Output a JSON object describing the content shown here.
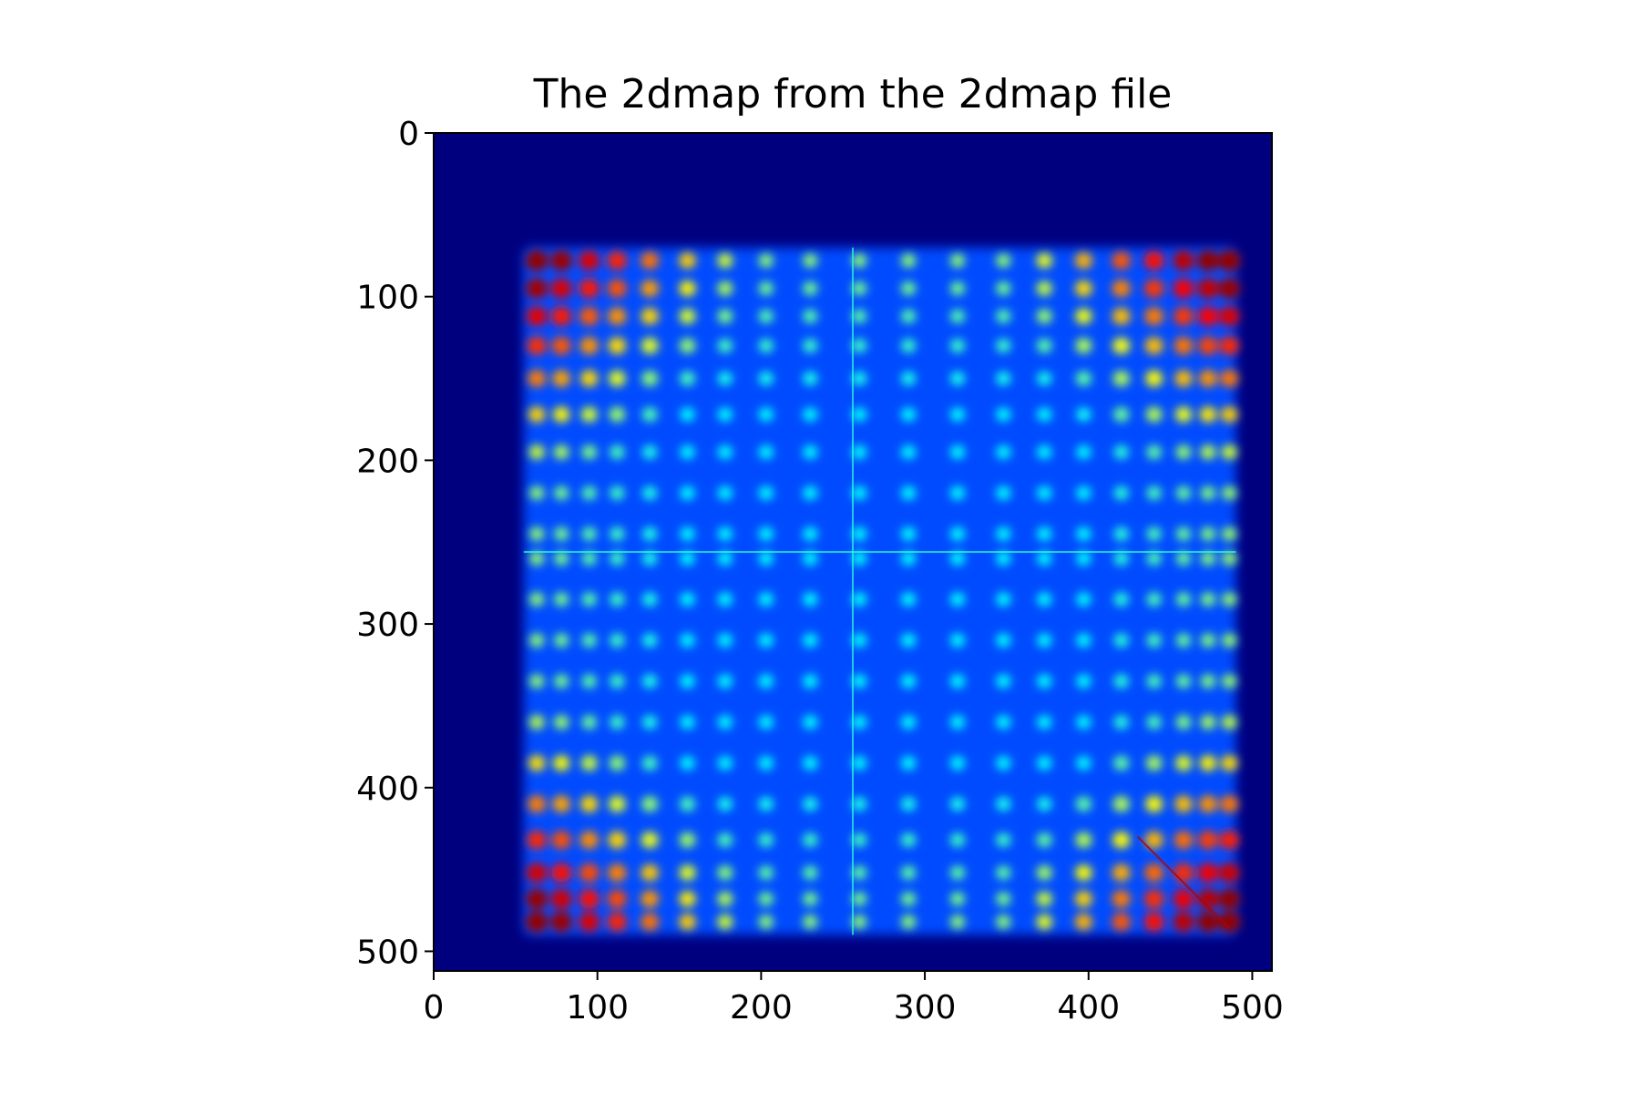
{
  "chart_data": {
    "type": "heatmap",
    "title": "The 2dmap from the 2dmap file",
    "xlabel": "",
    "ylabel": "",
    "xlim": [
      0,
      512
    ],
    "ylim": [
      512,
      0
    ],
    "x_ticks": [
      0,
      100,
      200,
      300,
      400,
      500
    ],
    "y_ticks": [
      0,
      100,
      200,
      300,
      400,
      500
    ],
    "x_tick_labels": [
      "0",
      "100",
      "200",
      "300",
      "400",
      "500"
    ],
    "y_tick_labels": [
      "0",
      "100",
      "200",
      "300",
      "400",
      "500"
    ],
    "colormap": "jet",
    "colormap_stops": [
      "#00007f",
      "#0000ff",
      "#007fff",
      "#00ffff",
      "#7fff7f",
      "#ffff00",
      "#ff7f00",
      "#ff0000",
      "#7f0000"
    ],
    "background_color": "#00007f",
    "grid": false,
    "image_size": [
      512,
      512
    ],
    "bright_region": {
      "x": [
        55,
        490
      ],
      "y": [
        70,
        490
      ]
    },
    "spot_centers": {
      "x": [
        63,
        78,
        95,
        112,
        132,
        155,
        178,
        203,
        230,
        260,
        290,
        320,
        348,
        373,
        397,
        420,
        440,
        458,
        473,
        486
      ],
      "y": [
        78,
        95,
        112,
        130,
        150,
        172,
        195,
        220,
        245,
        260,
        285,
        310,
        335,
        360,
        385,
        410,
        432,
        452,
        468,
        482
      ]
    },
    "hot_corners": [
      "top-left",
      "top-right",
      "bottom-left",
      "bottom-right"
    ],
    "features": [
      "vertical line at x≈256",
      "horizontal line at y≈256",
      "diagonal streak bottom-right"
    ]
  }
}
